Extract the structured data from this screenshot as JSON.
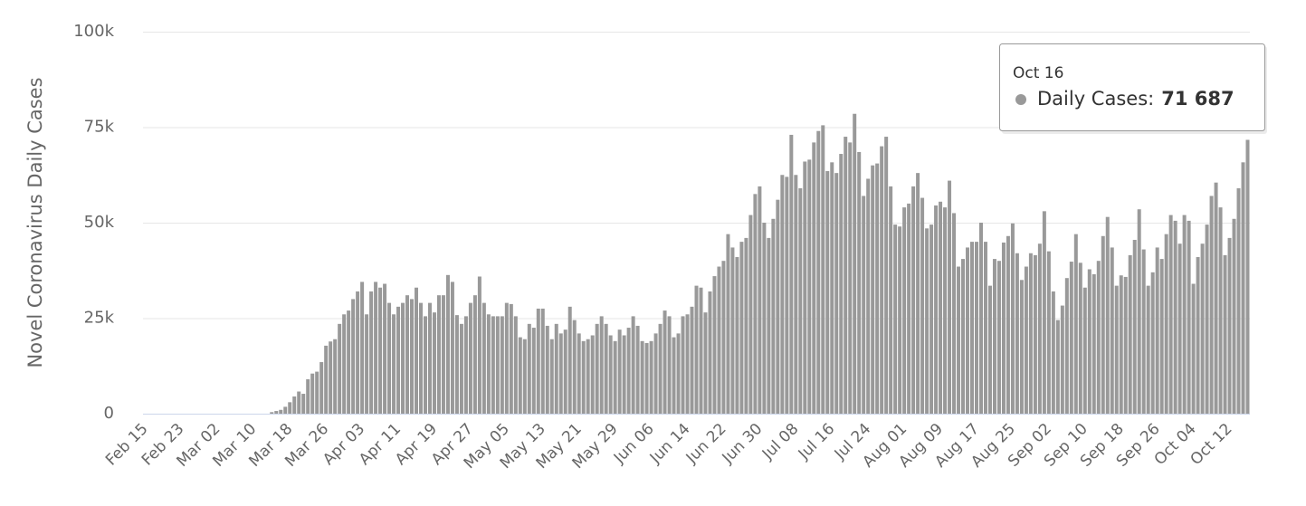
{
  "chart_data": {
    "type": "bar",
    "y_axis_title": "Novel Coronavirus Daily Cases",
    "color": "#999999",
    "grid": true,
    "ylim": [
      0,
      100000
    ],
    "yticks": [
      0,
      {
        "value": 25000,
        "label": "25k"
      },
      {
        "value": 50000,
        "label": "50k"
      },
      {
        "value": 75000,
        "label": "75k"
      },
      {
        "value": 100000,
        "label": "100k"
      }
    ],
    "categories": [
      "Feb 15",
      null,
      null,
      null,
      null,
      null,
      null,
      null,
      "Feb 23",
      null,
      null,
      null,
      null,
      null,
      null,
      null,
      "Mar 02",
      null,
      null,
      null,
      null,
      null,
      null,
      null,
      "Mar 10",
      null,
      null,
      null,
      null,
      null,
      null,
      null,
      "Mar 18",
      null,
      null,
      null,
      null,
      null,
      null,
      null,
      "Mar 26",
      null,
      null,
      null,
      null,
      null,
      null,
      null,
      "Apr 03",
      null,
      null,
      null,
      null,
      null,
      null,
      null,
      "Apr 11",
      null,
      null,
      null,
      null,
      null,
      null,
      null,
      "Apr 19",
      null,
      null,
      null,
      null,
      null,
      null,
      null,
      "Apr 27",
      null,
      null,
      null,
      null,
      null,
      null,
      null,
      "May 05",
      null,
      null,
      null,
      null,
      null,
      null,
      null,
      "May 13",
      null,
      null,
      null,
      null,
      null,
      null,
      null,
      "May 21",
      null,
      null,
      null,
      null,
      null,
      null,
      null,
      "May 29",
      null,
      null,
      null,
      null,
      null,
      null,
      null,
      "Jun 06",
      null,
      null,
      null,
      null,
      null,
      null,
      null,
      "Jun 14",
      null,
      null,
      null,
      null,
      null,
      null,
      null,
      "Jun 22",
      null,
      null,
      null,
      null,
      null,
      null,
      null,
      "Jun 30",
      null,
      null,
      null,
      null,
      null,
      null,
      null,
      "Jul 08",
      null,
      null,
      null,
      null,
      null,
      null,
      null,
      "Jul 16",
      null,
      null,
      null,
      null,
      null,
      null,
      null,
      "Jul 24",
      null,
      null,
      null,
      null,
      null,
      null,
      null,
      "Aug 01",
      null,
      null,
      null,
      null,
      null,
      null,
      null,
      "Aug 09",
      null,
      null,
      null,
      null,
      null,
      null,
      null,
      "Aug 17",
      null,
      null,
      null,
      null,
      null,
      null,
      null,
      "Aug 25",
      null,
      null,
      null,
      null,
      null,
      null,
      null,
      "Sep 02",
      null,
      null,
      null,
      null,
      null,
      null,
      null,
      "Sep 10",
      null,
      null,
      null,
      null,
      null,
      null,
      null,
      "Sep 18",
      null,
      null,
      null,
      null,
      null,
      null,
      null,
      "Sep 26",
      null,
      null,
      null,
      null,
      null,
      null,
      null,
      "Oct 04",
      null,
      null,
      null,
      null,
      null,
      null,
      null,
      "Oct 12",
      null,
      null,
      null,
      null
    ],
    "values": [
      0,
      0,
      0,
      0,
      0,
      0,
      0,
      0,
      0,
      0,
      0,
      0,
      0,
      0,
      0,
      0,
      0,
      0,
      0,
      0,
      0,
      0,
      0,
      0,
      0,
      0,
      0,
      0,
      400,
      700,
      1000,
      1800,
      3000,
      4500,
      5800,
      5200,
      9000,
      10500,
      11000,
      13500,
      17800,
      18900,
      19500,
      23500,
      26000,
      27000,
      30000,
      32000,
      34500,
      26000,
      32000,
      34500,
      33000,
      34000,
      29000,
      26000,
      28000,
      29000,
      31000,
      30000,
      33000,
      29000,
      25500,
      29000,
      26500,
      31000,
      31000,
      36300,
      34500,
      25800,
      23500,
      25500,
      29000,
      31000,
      35900,
      29000,
      26000,
      25500,
      25500,
      25500,
      29000,
      28700,
      25500,
      20000,
      19500,
      23500,
      22500,
      27500,
      27500,
      23000,
      19500,
      23500,
      21000,
      22000,
      28000,
      24500,
      21000,
      19000,
      19500,
      20500,
      23500,
      25500,
      23500,
      20500,
      19000,
      22000,
      20500,
      22500,
      25500,
      23000,
      19000,
      18500,
      19000,
      21000,
      23500,
      27000,
      25500,
      20000,
      21000,
      25500,
      26000,
      28000,
      33500,
      33000,
      26500,
      32000,
      36000,
      38500,
      40000,
      47000,
      43500,
      41000,
      45000,
      46000,
      52000,
      57500,
      59500,
      50000,
      46000,
      51000,
      56000,
      62500,
      62000,
      73000,
      62500,
      59000,
      66000,
      66500,
      71000,
      74000,
      75500,
      63500,
      65800,
      63000,
      68000,
      72500,
      71000,
      78500,
      68500,
      57000,
      61500,
      65000,
      65500,
      70000,
      72500,
      59500,
      49500,
      49000,
      54000,
      55000,
      59500,
      63000,
      56500,
      48500,
      49500,
      54500,
      55500,
      54000,
      61000,
      52500,
      38500,
      40500,
      43500,
      45000,
      45000,
      50000,
      45000,
      33500,
      40500,
      40000,
      44800,
      46500,
      49800,
      42000,
      35000,
      38500,
      42000,
      41500,
      44500,
      53000,
      42500,
      32000,
      24500,
      28300,
      35500,
      39800,
      47000,
      39500,
      33000,
      37800,
      36500,
      40000,
      46500,
      51500,
      43500,
      33500,
      36200,
      35800,
      41500,
      45500,
      53500,
      43000,
      33500,
      37000,
      43500,
      40500,
      47000,
      52000,
      50500,
      44500,
      52000,
      50500,
      34000,
      41000,
      44500,
      49500,
      57000,
      60500,
      54000,
      41500,
      46000,
      51000,
      59000,
      65800,
      71687
    ],
    "tooltip": {
      "title": "Oct 16",
      "label": "Daily Cases:",
      "value": "71 687",
      "color": "#999999"
    }
  }
}
